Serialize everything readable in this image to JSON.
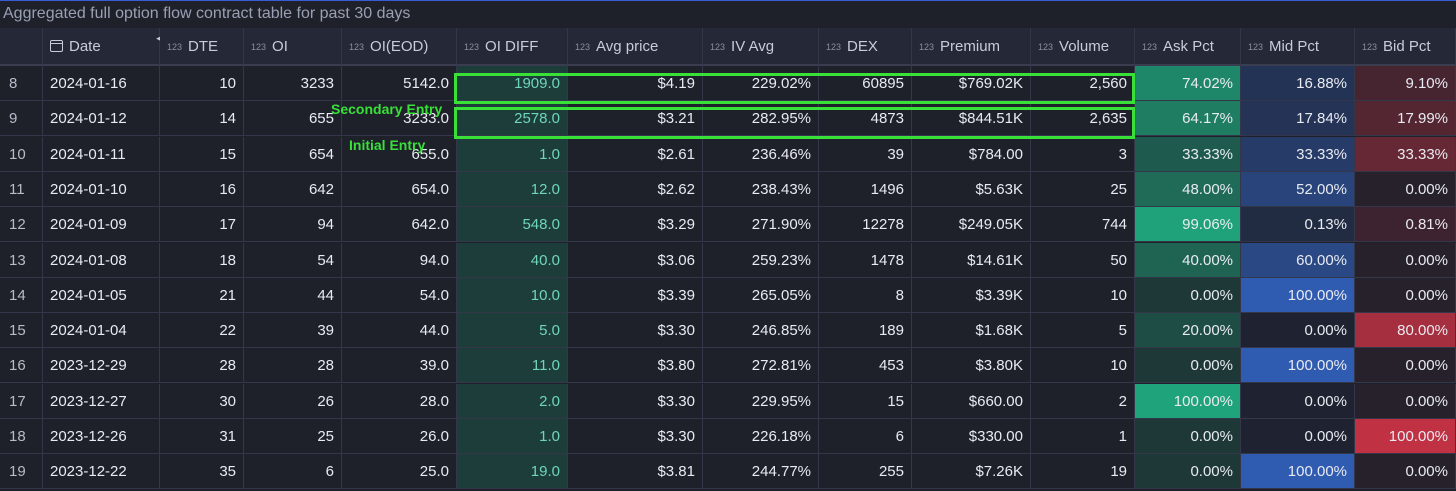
{
  "title": "Aggregated full option flow contract table for past 30 days",
  "columns": [
    {
      "key": "date",
      "label": "Date",
      "prefix": "calendar-icon"
    },
    {
      "key": "dte",
      "label": "DTE",
      "prefix": "123"
    },
    {
      "key": "oi",
      "label": "OI",
      "prefix": "123"
    },
    {
      "key": "oi_eod",
      "label": "OI(EOD)",
      "prefix": "123"
    },
    {
      "key": "oi_diff",
      "label": "OI DIFF",
      "prefix": "123"
    },
    {
      "key": "avg_price",
      "label": "Avg price",
      "prefix": "123"
    },
    {
      "key": "iv_avg",
      "label": "IV Avg",
      "prefix": "123"
    },
    {
      "key": "dex",
      "label": "DEX",
      "prefix": "123"
    },
    {
      "key": "premium",
      "label": "Premium",
      "prefix": "123"
    },
    {
      "key": "volume",
      "label": "Volume",
      "prefix": "123"
    },
    {
      "key": "ask_pct",
      "label": "Ask Pct",
      "prefix": "123"
    },
    {
      "key": "mid_pct",
      "label": "Mid Pct",
      "prefix": "123"
    },
    {
      "key": "bid_pct",
      "label": "Bid Pct",
      "prefix": "123"
    }
  ],
  "rows": [
    {
      "idx": "8",
      "date": "2024-01-16",
      "dte": "10",
      "oi": "3233",
      "oi_eod": "5142.0",
      "oi_diff": "1909.0",
      "avg_price": "$4.19",
      "iv_avg": "229.02%",
      "dex": "60895",
      "premium": "$769.02K",
      "volume": "2,560",
      "ask_pct": "74.02%",
      "mid_pct": "16.88%",
      "bid_pct": "9.10%",
      "ask": 0.7402,
      "mid": 0.1688,
      "bid": 0.091
    },
    {
      "idx": "9",
      "date": "2024-01-12",
      "dte": "14",
      "oi": "655",
      "oi_eod": "3233.0",
      "oi_diff": "2578.0",
      "avg_price": "$3.21",
      "iv_avg": "282.95%",
      "dex": "4873",
      "premium": "$844.51K",
      "volume": "2,635",
      "ask_pct": "64.17%",
      "mid_pct": "17.84%",
      "bid_pct": "17.99%",
      "ask": 0.6417,
      "mid": 0.1784,
      "bid": 0.1799
    },
    {
      "idx": "10",
      "date": "2024-01-11",
      "dte": "15",
      "oi": "654",
      "oi_eod": "655.0",
      "oi_diff": "1.0",
      "avg_price": "$2.61",
      "iv_avg": "236.46%",
      "dex": "39",
      "premium": "$784.00",
      "volume": "3",
      "ask_pct": "33.33%",
      "mid_pct": "33.33%",
      "bid_pct": "33.33%",
      "ask": 0.3333,
      "mid": 0.3333,
      "bid": 0.3333
    },
    {
      "idx": "11",
      "date": "2024-01-10",
      "dte": "16",
      "oi": "642",
      "oi_eod": "654.0",
      "oi_diff": "12.0",
      "avg_price": "$2.62",
      "iv_avg": "238.43%",
      "dex": "1496",
      "premium": "$5.63K",
      "volume": "25",
      "ask_pct": "48.00%",
      "mid_pct": "52.00%",
      "bid_pct": "0.00%",
      "ask": 0.48,
      "mid": 0.52,
      "bid": 0
    },
    {
      "idx": "12",
      "date": "2024-01-09",
      "dte": "17",
      "oi": "94",
      "oi_eod": "642.0",
      "oi_diff": "548.0",
      "avg_price": "$3.29",
      "iv_avg": "271.90%",
      "dex": "12278",
      "premium": "$249.05K",
      "volume": "744",
      "ask_pct": "99.06%",
      "mid_pct": "0.13%",
      "bid_pct": "0.81%",
      "ask": 0.9906,
      "mid": 0.0013,
      "bid": 0.0081
    },
    {
      "idx": "13",
      "date": "2024-01-08",
      "dte": "18",
      "oi": "54",
      "oi_eod": "94.0",
      "oi_diff": "40.0",
      "avg_price": "$3.06",
      "iv_avg": "259.23%",
      "dex": "1478",
      "premium": "$14.61K",
      "volume": "50",
      "ask_pct": "40.00%",
      "mid_pct": "60.00%",
      "bid_pct": "0.00%",
      "ask": 0.4,
      "mid": 0.6,
      "bid": 0
    },
    {
      "idx": "14",
      "date": "2024-01-05",
      "dte": "21",
      "oi": "44",
      "oi_eod": "54.0",
      "oi_diff": "10.0",
      "avg_price": "$3.39",
      "iv_avg": "265.05%",
      "dex": "8",
      "premium": "$3.39K",
      "volume": "10",
      "ask_pct": "0.00%",
      "mid_pct": "100.00%",
      "bid_pct": "0.00%",
      "ask": 0,
      "mid": 1,
      "bid": 0
    },
    {
      "idx": "15",
      "date": "2024-01-04",
      "dte": "22",
      "oi": "39",
      "oi_eod": "44.0",
      "oi_diff": "5.0",
      "avg_price": "$3.30",
      "iv_avg": "246.85%",
      "dex": "189",
      "premium": "$1.68K",
      "volume": "5",
      "ask_pct": "20.00%",
      "mid_pct": "0.00%",
      "bid_pct": "80.00%",
      "ask": 0.2,
      "mid": 0,
      "bid": 0.8
    },
    {
      "idx": "16",
      "date": "2023-12-29",
      "dte": "28",
      "oi": "28",
      "oi_eod": "39.0",
      "oi_diff": "11.0",
      "avg_price": "$3.80",
      "iv_avg": "272.81%",
      "dex": "453",
      "premium": "$3.80K",
      "volume": "10",
      "ask_pct": "0.00%",
      "mid_pct": "100.00%",
      "bid_pct": "0.00%",
      "ask": 0,
      "mid": 1,
      "bid": 0
    },
    {
      "idx": "17",
      "date": "2023-12-27",
      "dte": "30",
      "oi": "26",
      "oi_eod": "28.0",
      "oi_diff": "2.0",
      "avg_price": "$3.30",
      "iv_avg": "229.95%",
      "dex": "15",
      "premium": "$660.00",
      "volume": "2",
      "ask_pct": "100.00%",
      "mid_pct": "0.00%",
      "bid_pct": "0.00%",
      "ask": 1,
      "mid": 0,
      "bid": 0
    },
    {
      "idx": "18",
      "date": "2023-12-26",
      "dte": "31",
      "oi": "25",
      "oi_eod": "26.0",
      "oi_diff": "1.0",
      "avg_price": "$3.30",
      "iv_avg": "226.18%",
      "dex": "6",
      "premium": "$330.00",
      "volume": "1",
      "ask_pct": "0.00%",
      "mid_pct": "0.00%",
      "bid_pct": "100.00%",
      "ask": 0,
      "mid": 0,
      "bid": 1
    },
    {
      "idx": "19",
      "date": "2023-12-22",
      "dte": "35",
      "oi": "6",
      "oi_eod": "25.0",
      "oi_diff": "19.0",
      "avg_price": "$3.81",
      "iv_avg": "244.77%",
      "dex": "255",
      "premium": "$7.26K",
      "volume": "19",
      "ask_pct": "0.00%",
      "mid_pct": "100.00%",
      "bid_pct": "0.00%",
      "ask": 0,
      "mid": 1,
      "bid": 0
    }
  ],
  "annotations": {
    "secondary": "Secondary Entry",
    "initial": "Initial Entry",
    "highlight_color": "#38e038"
  },
  "colors": {
    "ask": "#1fa37a",
    "mid": "#2f5bb0",
    "bid": "#c03243",
    "base": "#1e202a"
  }
}
